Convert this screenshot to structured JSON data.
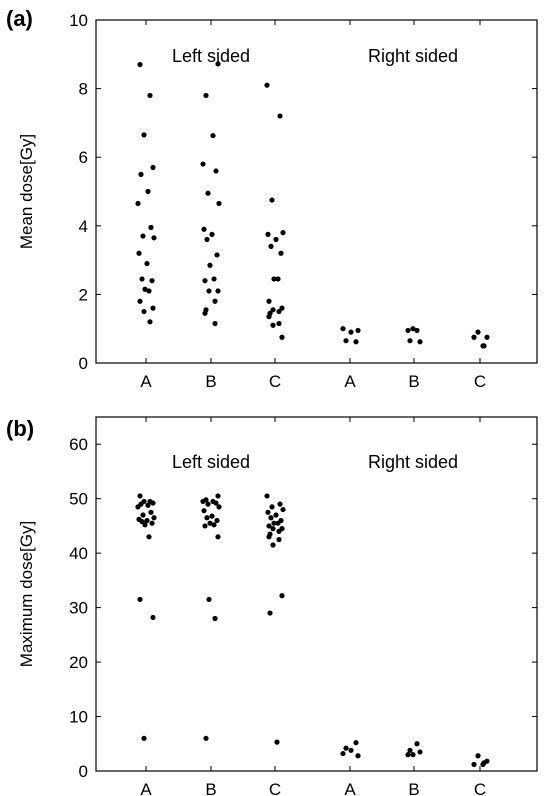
{
  "chart_data": [
    {
      "type": "scatter",
      "panel_label": "(a)",
      "ylabel": "Mean dose[Gy]",
      "ylim": [
        0,
        10
      ],
      "yticks": [
        0,
        2,
        4,
        6,
        8,
        10
      ],
      "categories": [
        "A",
        "B",
        "C",
        "A",
        "B",
        "C"
      ],
      "group_labels": [
        "Left sided",
        "Right sided"
      ],
      "series": [
        {
          "category": "A",
          "group": "Left sided",
          "values": [
            8.7,
            7.8,
            6.65,
            5.7,
            5.5,
            5.0,
            4.65,
            3.95,
            3.7,
            3.65,
            3.2,
            2.9,
            2.45,
            2.4,
            2.15,
            2.1,
            1.8,
            1.6,
            1.5,
            1.2
          ]
        },
        {
          "category": "B",
          "group": "Left sided",
          "values": [
            8.72,
            7.8,
            6.63,
            5.8,
            5.6,
            4.95,
            4.65,
            3.9,
            3.75,
            3.6,
            3.15,
            2.85,
            2.45,
            2.4,
            2.1,
            2.1,
            1.8,
            1.55,
            1.45,
            1.15
          ]
        },
        {
          "category": "C",
          "group": "Left sided",
          "values": [
            8.1,
            7.2,
            4.75,
            3.8,
            3.75,
            3.6,
            3.4,
            3.2,
            2.45,
            2.45,
            1.8,
            1.6,
            1.55,
            1.5,
            1.45,
            1.35,
            1.15,
            1.1,
            0.75
          ]
        },
        {
          "category": "A",
          "group": "Right sided",
          "values": [
            0.95,
            1.0,
            0.9,
            0.65,
            0.62
          ]
        },
        {
          "category": "B",
          "group": "Right sided",
          "values": [
            0.65,
            0.62,
            1.0,
            0.95,
            0.95
          ]
        },
        {
          "category": "C",
          "group": "Right sided",
          "values": [
            0.5,
            0.75,
            0.75,
            0.9,
            0.5
          ]
        }
      ]
    },
    {
      "type": "scatter",
      "panel_label": "(b)",
      "ylabel": "Maximum dose[Gy]",
      "ylim": [
        0,
        65
      ],
      "yticks": [
        0,
        10,
        20,
        30,
        40,
        50,
        60
      ],
      "categories": [
        "A",
        "B",
        "C",
        "A",
        "B",
        "C"
      ],
      "group_labels": [
        "Left sided",
        "Right sided"
      ],
      "series": [
        {
          "category": "A",
          "group": "Left sided",
          "values": [
            50.5,
            49.5,
            49.5,
            49.2,
            49.0,
            48.8,
            48.5,
            47.5,
            47.0,
            46.5,
            46.2,
            46.0,
            45.8,
            45.5,
            45.2,
            43.0,
            31.5,
            28.2,
            6.0
          ]
        },
        {
          "category": "B",
          "group": "Left sided",
          "values": [
            50.5,
            49.8,
            49.5,
            49.5,
            49.2,
            49.0,
            48.5,
            47.8,
            46.8,
            46.5,
            46.0,
            45.5,
            45.2,
            45.0,
            43.0,
            31.5,
            28.0,
            6.0
          ]
        },
        {
          "category": "C",
          "group": "Left sided",
          "values": [
            50.5,
            49.0,
            48.5,
            48.0,
            47.5,
            47.0,
            46.5,
            46.0,
            45.5,
            45.5,
            45.0,
            44.5,
            44.5,
            44.0,
            43.5,
            43.0,
            42.5,
            41.5,
            32.2,
            29.0,
            5.3
          ]
        },
        {
          "category": "A",
          "group": "Right sided",
          "values": [
            2.8,
            3.2,
            3.8,
            4.2,
            5.2
          ]
        },
        {
          "category": "B",
          "group": "Right sided",
          "values": [
            3.8,
            3.5,
            3.0,
            5.0,
            3.0
          ]
        },
        {
          "category": "C",
          "group": "Right sided",
          "values": [
            1.2,
            1.2,
            1.8,
            2.8,
            1.5
          ]
        }
      ]
    }
  ]
}
